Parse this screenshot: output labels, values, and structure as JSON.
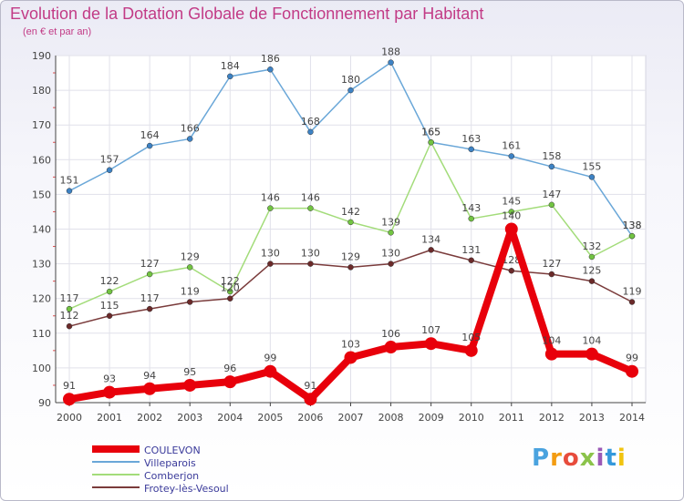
{
  "title": "Evolution de la Dotation Globale de Fonctionnement par Habitant",
  "subtitle": "(en € et par an)",
  "logo": {
    "text": "Proxiti",
    "colors": [
      "#4aa3df",
      "#f39c12",
      "#e74c3c",
      "#8bc34a",
      "#9b59b6",
      "#3498db",
      "#f1c40f"
    ]
  },
  "chart_data": {
    "type": "line",
    "x": [
      2000,
      2001,
      2002,
      2003,
      2004,
      2005,
      2006,
      2007,
      2008,
      2009,
      2010,
      2011,
      2012,
      2013,
      2014
    ],
    "ylim": [
      90,
      190
    ],
    "yticks": [
      90,
      100,
      110,
      120,
      130,
      140,
      150,
      160,
      170,
      180,
      190
    ],
    "grid": true,
    "legend_position": "bottom-left",
    "series": [
      {
        "name": "Villeparois",
        "color": "#6aa7d8",
        "marker": "#3d82c4",
        "values": [
          151,
          157,
          164,
          166,
          184,
          186,
          168,
          180,
          188,
          165,
          163,
          161,
          158,
          155,
          138
        ]
      },
      {
        "name": "Comberjon",
        "color": "#a3dc7a",
        "marker": "#72c442",
        "values": [
          117,
          122,
          127,
          129,
          122,
          146,
          146,
          142,
          139,
          165,
          143,
          145,
          147,
          132,
          138
        ]
      },
      {
        "name": "Frotey-lès-Vesoul",
        "color": "#7a3b3b",
        "marker": "#6b2a2a",
        "values": [
          112,
          115,
          117,
          119,
          120,
          130,
          130,
          129,
          130,
          134,
          131,
          128,
          127,
          125,
          119
        ]
      },
      {
        "name": "COULEVON",
        "color": "#e8000b",
        "marker": "#e8000b",
        "bold": true,
        "values": [
          91,
          93,
          94,
          95,
          96,
          99,
          91,
          103,
          106,
          107,
          105,
          140,
          104,
          104,
          99
        ]
      }
    ]
  }
}
